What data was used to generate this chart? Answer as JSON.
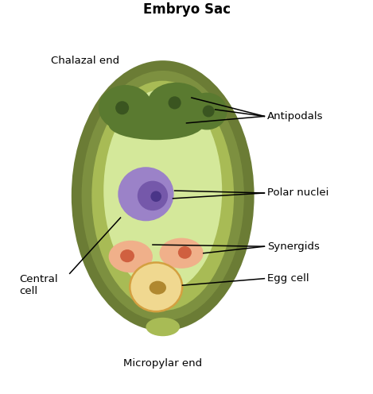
{
  "title": "Embryo Sac",
  "title_fontsize": 12,
  "title_bold": true,
  "labels": {
    "chalazal_end": "Chalazal end",
    "antipodals": "Antipodals",
    "polar_nuclei": "Polar nuclei",
    "synergids": "Synergids",
    "egg_cell": "Egg cell",
    "central_cell": "Central\ncell",
    "micropylar_end": "Micropylar end"
  },
  "colors": {
    "outer_coat_dark": "#6b7c35",
    "outer_coat_mid": "#7d9040",
    "outer_coat_light": "#a8bb55",
    "cell_interior": "#d4e89a",
    "antipodal_fill": "#5a7a30",
    "antipodal_nucleus": "#3a5520",
    "polar_nucleus_outer": "#9b82c8",
    "polar_nucleus_inner": "#7558aa",
    "polar_nucleus_dot": "#4a3588",
    "synergid_fill": "#f0b08a",
    "synergid_nucleus": "#d06040",
    "egg_cell_fill": "#f0d890",
    "egg_cell_border": "#d4a040",
    "egg_cell_nucleus": "#b08830",
    "background": "#ffffff"
  },
  "fig_width": 4.69,
  "fig_height": 4.96,
  "dpi": 100
}
